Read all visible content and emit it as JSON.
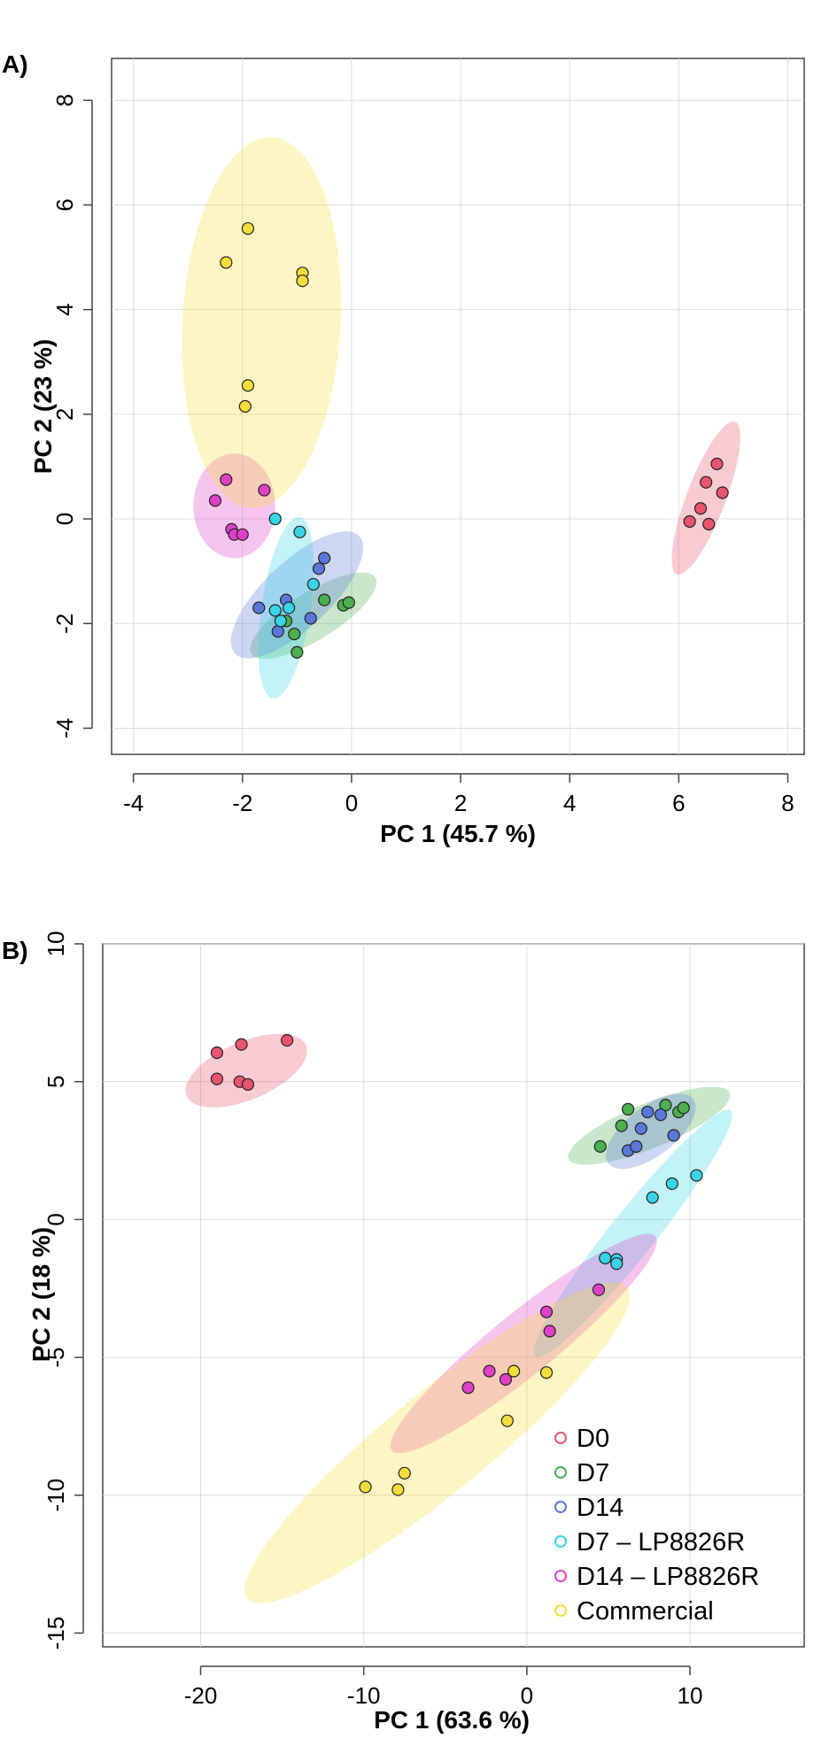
{
  "legend": {
    "items": [
      {
        "label": "D0",
        "color": "#e8546e"
      },
      {
        "label": "D7",
        "color": "#4caf50"
      },
      {
        "label": "D14",
        "color": "#5b78d8"
      },
      {
        "label": "D7 – LP8826R",
        "color": "#39d4e8"
      },
      {
        "label": "D14 – LP8826R",
        "color": "#e040c8"
      },
      {
        "label": "Commercial",
        "color": "#f5de3c"
      }
    ]
  },
  "chart_data": [
    {
      "panel_label": "A)",
      "type": "scatter",
      "xlabel": "PC 1 (45.7 %)",
      "ylabel": "PC 2 (23 %)",
      "xlim": [
        -4.4,
        8.3
      ],
      "ylim": [
        -4.5,
        8.8
      ],
      "xticks": [
        -4,
        -2,
        0,
        2,
        4,
        6,
        8
      ],
      "yticks": [
        -4,
        -2,
        0,
        2,
        4,
        6,
        8
      ],
      "xtick_labels": [
        "-4",
        "-2",
        "0",
        "2",
        "4",
        "6",
        "8"
      ],
      "ytick_labels": [
        "-4",
        "-2",
        "0",
        "2",
        "4",
        "6",
        "8"
      ],
      "grid": true,
      "series": [
        {
          "name": "D0",
          "color": "#e8546e",
          "points": [
            [
              6.2,
              -0.05
            ],
            [
              6.4,
              0.2
            ],
            [
              6.5,
              0.7
            ],
            [
              6.55,
              -0.1
            ],
            [
              6.7,
              1.05
            ],
            [
              6.8,
              0.5
            ]
          ],
          "ellipse": {
            "cx": 6.5,
            "cy": 0.4,
            "rx": 1.55,
            "ry": 0.36,
            "angle": 70
          }
        },
        {
          "name": "D7",
          "color": "#4caf50",
          "points": [
            [
              -1.0,
              -2.55
            ],
            [
              -1.2,
              -1.95
            ],
            [
              -1.05,
              -2.2
            ],
            [
              -0.5,
              -1.55
            ],
            [
              -0.15,
              -1.65
            ],
            [
              -0.05,
              -1.6
            ]
          ],
          "ellipse": {
            "cx": -0.7,
            "cy": -1.85,
            "rx": 1.35,
            "ry": 0.45,
            "angle": 33
          }
        },
        {
          "name": "D14",
          "color": "#5b78d8",
          "points": [
            [
              -1.7,
              -1.7
            ],
            [
              -1.35,
              -2.15
            ],
            [
              -1.2,
              -1.55
            ],
            [
              -0.75,
              -1.9
            ],
            [
              -0.6,
              -0.95
            ],
            [
              -0.5,
              -0.75
            ]
          ],
          "ellipse": {
            "cx": -1.0,
            "cy": -1.45,
            "rx": 1.6,
            "ry": 0.62,
            "angle": 45
          }
        },
        {
          "name": "D7 – LP8826R",
          "color": "#39d4e8",
          "points": [
            [
              -1.4,
              0.0
            ],
            [
              -0.95,
              -0.25
            ],
            [
              -0.7,
              -1.25
            ],
            [
              -1.4,
              -1.75
            ],
            [
              -1.3,
              -1.95
            ],
            [
              -1.15,
              -1.7
            ]
          ],
          "ellipse": {
            "cx": -1.2,
            "cy": -1.7,
            "rx": 1.75,
            "ry": 0.45,
            "angle": 82
          }
        },
        {
          "name": "D14 – LP8826R",
          "color": "#e040c8",
          "points": [
            [
              -2.3,
              0.75
            ],
            [
              -1.6,
              0.55
            ],
            [
              -2.5,
              0.35
            ],
            [
              -2.2,
              -0.2
            ],
            [
              -2.15,
              -0.3
            ],
            [
              -2.0,
              -0.3
            ]
          ],
          "ellipse": {
            "cx": -2.15,
            "cy": 0.25,
            "rx": 1.0,
            "ry": 0.75,
            "angle": 90
          }
        },
        {
          "name": "Commercial",
          "color": "#f5de3c",
          "points": [
            [
              -2.3,
              4.9
            ],
            [
              -1.9,
              5.55
            ],
            [
              -0.9,
              4.7
            ],
            [
              -0.9,
              4.55
            ],
            [
              -1.9,
              2.55
            ],
            [
              -1.95,
              2.15
            ]
          ],
          "ellipse": {
            "cx": -1.65,
            "cy": 3.75,
            "rx": 3.55,
            "ry": 1.45,
            "angle": 87
          }
        }
      ]
    },
    {
      "panel_label": "B)",
      "type": "scatter",
      "xlabel": "PC 1 (63.6 %)",
      "ylabel": "PC 2 (18 %)",
      "xlim": [
        -26,
        17
      ],
      "ylim": [
        -15.5,
        10
      ],
      "xticks": [
        -20,
        -10,
        0,
        10
      ],
      "yticks": [
        -15,
        -10,
        -5,
        0,
        5,
        10
      ],
      "xtick_labels": [
        "-20",
        "-10",
        "0",
        "10"
      ],
      "ytick_labels": [
        "-15",
        "-10",
        "-5",
        "0",
        "5",
        "10"
      ],
      "grid": true,
      "legend_position": "bottom-right",
      "series": [
        {
          "name": "D0",
          "color": "#e8546e",
          "points": [
            [
              -19,
              6.05
            ],
            [
              -17.5,
              6.35
            ],
            [
              -14.7,
              6.5
            ],
            [
              -19,
              5.1
            ],
            [
              -17.6,
              5.0
            ],
            [
              -17.1,
              4.9
            ]
          ],
          "ellipse": {
            "cx": -17.2,
            "cy": 5.4,
            "rx": 3.8,
            "ry": 1.1,
            "angle": 12
          }
        },
        {
          "name": "D7",
          "color": "#4caf50",
          "points": [
            [
              4.5,
              2.65
            ],
            [
              5.8,
              3.4
            ],
            [
              6.2,
              4.0
            ],
            [
              8.5,
              4.15
            ],
            [
              9.3,
              3.9
            ],
            [
              9.6,
              4.05
            ]
          ],
          "ellipse": {
            "cx": 7.5,
            "cy": 3.4,
            "rx": 5.1,
            "ry": 0.85,
            "angle": 13
          }
        },
        {
          "name": "D14",
          "color": "#5b78d8",
          "points": [
            [
              6.2,
              2.5
            ],
            [
              6.7,
              2.65
            ],
            [
              7.0,
              3.3
            ],
            [
              7.4,
              3.9
            ],
            [
              8.2,
              3.8
            ],
            [
              9.0,
              3.05
            ]
          ],
          "ellipse": {
            "cx": 7.6,
            "cy": 3.2,
            "rx": 2.9,
            "ry": 1.0,
            "angle": 20
          }
        },
        {
          "name": "D7 – LP8826R",
          "color": "#39d4e8",
          "points": [
            [
              10.4,
              1.6
            ],
            [
              8.9,
              1.3
            ],
            [
              7.7,
              0.8
            ],
            [
              4.8,
              -1.4
            ],
            [
              5.5,
              -1.45
            ],
            [
              5.5,
              -1.6
            ]
          ],
          "ellipse": {
            "cx": 6.5,
            "cy": -0.5,
            "rx": 7.5,
            "ry": 1.05,
            "angle": 36
          }
        },
        {
          "name": "D14 – LP8826R",
          "color": "#e040c8",
          "points": [
            [
              4.4,
              -2.55
            ],
            [
              1.2,
              -3.35
            ],
            [
              1.4,
              -4.05
            ],
            [
              -2.3,
              -5.5
            ],
            [
              -1.3,
              -5.8
            ],
            [
              -3.6,
              -6.1
            ]
          ],
          "ellipse": {
            "cx": -0.2,
            "cy": -4.5,
            "rx": 9.0,
            "ry": 1.3,
            "angle": 25
          }
        },
        {
          "name": "Commercial",
          "color": "#f5de3c",
          "points": [
            [
              -0.8,
              -5.5
            ],
            [
              1.2,
              -5.55
            ],
            [
              -1.2,
              -7.3
            ],
            [
              -7.5,
              -9.2
            ],
            [
              -9.9,
              -9.7
            ],
            [
              -7.9,
              -9.8
            ]
          ],
          "ellipse": {
            "cx": -5.5,
            "cy": -8.1,
            "rx": 13.0,
            "ry": 2.1,
            "angle": 25
          }
        }
      ]
    }
  ]
}
